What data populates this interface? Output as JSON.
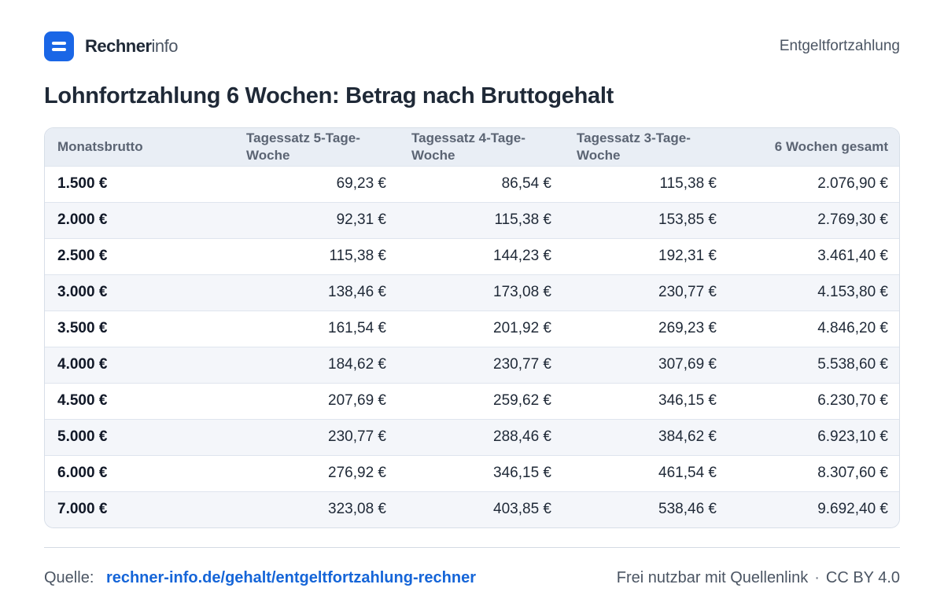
{
  "brand": {
    "name_bold": "Rechner",
    "name_light": "info"
  },
  "header": {
    "topic": "Entgeltfortzahlung"
  },
  "title": "Lohnfortzahlung 6 Wochen: Betrag nach Bruttogehalt",
  "table": {
    "headers": [
      "Monatsbrutto",
      "Tagessatz 5-Tage-Woche",
      "Tagessatz 4-Tage-Woche",
      "Tagessatz 3-Tage-Woche",
      "6 Wochen gesamt"
    ],
    "rows": [
      [
        "1.500 €",
        "69,23 €",
        "86,54 €",
        "115,38 €",
        "2.076,90 €"
      ],
      [
        "2.000 €",
        "92,31 €",
        "115,38 €",
        "153,85 €",
        "2.769,30 €"
      ],
      [
        "2.500 €",
        "115,38 €",
        "144,23 €",
        "192,31 €",
        "3.461,40 €"
      ],
      [
        "3.000 €",
        "138,46 €",
        "173,08 €",
        "230,77 €",
        "4.153,80 €"
      ],
      [
        "3.500 €",
        "161,54 €",
        "201,92 €",
        "269,23 €",
        "4.846,20 €"
      ],
      [
        "4.000 €",
        "184,62 €",
        "230,77 €",
        "307,69 €",
        "5.538,60 €"
      ],
      [
        "4.500 €",
        "207,69 €",
        "259,62 €",
        "346,15 €",
        "6.230,70 €"
      ],
      [
        "5.000 €",
        "230,77 €",
        "288,46 €",
        "384,62 €",
        "6.923,10 €"
      ],
      [
        "6.000 €",
        "276,92 €",
        "346,15 €",
        "461,54 €",
        "8.307,60 €"
      ],
      [
        "7.000 €",
        "323,08 €",
        "403,85 €",
        "538,46 €",
        "9.692,40 €"
      ]
    ]
  },
  "footer": {
    "source_label": "Quelle:",
    "source_link": "rechner-info.de/gehalt/entgeltfortzahlung-rechner",
    "license_text": "Frei nutzbar mit Quellenlink",
    "separator": "·",
    "license_name": "CC BY 4.0"
  },
  "colors": {
    "accent": "#1a66e6",
    "link": "#1565d8",
    "header_bg": "#e9eef5",
    "stripe_bg": "#f4f6fa"
  },
  "icons": {
    "logo": "rechner-logo-icon"
  }
}
